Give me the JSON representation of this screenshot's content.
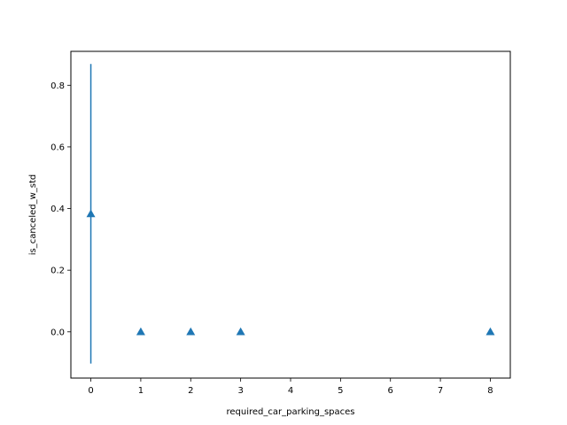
{
  "chart_data": {
    "type": "scatter",
    "title": "",
    "xlabel": "required_car_parking_spaces",
    "ylabel": "is_canceled_w_std",
    "xlim": [
      -0.4,
      8.4
    ],
    "ylim": [
      -0.15,
      0.91
    ],
    "x_ticks": [
      0,
      1,
      2,
      3,
      4,
      5,
      6,
      7,
      8
    ],
    "y_ticks": [
      0.0,
      0.2,
      0.4,
      0.6,
      0.8
    ],
    "grid": false,
    "marker": "triangle-up",
    "series_color": "#1f77b4",
    "points": [
      {
        "x": 0,
        "y": 0.383,
        "err": 0.486
      },
      {
        "x": 1,
        "y": 0.0,
        "err": 0
      },
      {
        "x": 2,
        "y": 0.0,
        "err": 0
      },
      {
        "x": 3,
        "y": 0.0,
        "err": 0
      },
      {
        "x": 8,
        "y": 0.0,
        "err": 0
      }
    ]
  }
}
